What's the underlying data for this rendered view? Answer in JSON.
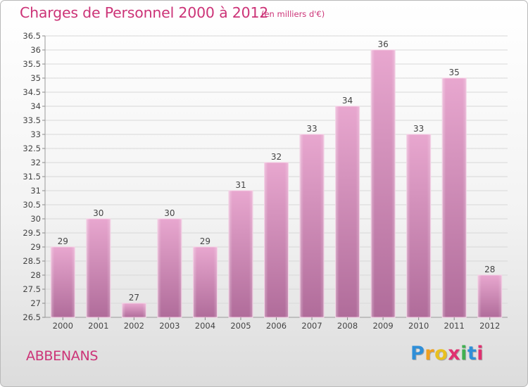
{
  "header": {
    "title": "Charges de Personnel 2000 à 2012",
    "unit_note": "(en milliers d'€)"
  },
  "footer": {
    "commune": "ABBENANS",
    "logo": "Proxiti"
  },
  "colors": {
    "accent": "#cc3377",
    "bar_top": "#e8a7cf",
    "bar_bottom": "#b06c9a"
  },
  "chart_data": {
    "type": "bar",
    "categories": [
      "2000",
      "2001",
      "2002",
      "2003",
      "2004",
      "2005",
      "2006",
      "2007",
      "2008",
      "2009",
      "2010",
      "2011",
      "2012"
    ],
    "values": [
      29,
      30,
      27,
      30,
      29,
      31,
      32,
      33,
      34,
      36,
      33,
      35,
      28
    ],
    "value_labels": [
      "29",
      "30",
      "27",
      "30",
      "29",
      "31",
      "32",
      "33",
      "34",
      "36",
      "33",
      "35",
      "28"
    ],
    "title": "Charges de Personnel 2000 à 2012",
    "ylim": [
      26.5,
      36.5
    ],
    "yticks": [
      26.5,
      27,
      27.5,
      28,
      28.5,
      29,
      29.5,
      30,
      30.5,
      31,
      31.5,
      32,
      32.5,
      33,
      33.5,
      34,
      34.5,
      35,
      35.5,
      36,
      36.5
    ],
    "ytick_labels": [
      "26.5",
      "27",
      "27.5",
      "28",
      "28.5",
      "29",
      "29.5",
      "30",
      "30.5",
      "31",
      "31.5",
      "32",
      "32.5",
      "33",
      "33.5",
      "34",
      "34.5",
      "35",
      "35.5",
      "36",
      "36.5"
    ],
    "grid": true
  }
}
